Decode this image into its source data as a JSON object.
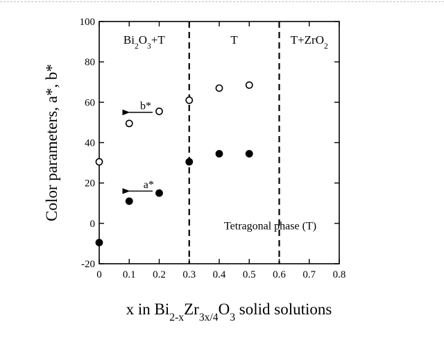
{
  "chart_data": {
    "type": "scatter",
    "xlabel": [
      "x in Bi",
      "2-x",
      "Zr",
      "3x/4",
      "O",
      "3",
      " solid solutions"
    ],
    "ylabel": "Color parameters, a*, b*",
    "xlim": [
      0,
      0.8
    ],
    "ylim": [
      -20,
      100
    ],
    "x_ticks": [
      "0",
      "0.1",
      "0.2",
      "0.3",
      "0.4",
      "0.5",
      "0.6",
      "0.7",
      "0.8"
    ],
    "y_ticks": [
      "-20",
      "0",
      "20",
      "40",
      "60",
      "80",
      "100"
    ],
    "grid": false,
    "series": [
      {
        "name": "b*",
        "marker": "open-circle",
        "points": [
          {
            "x": 0,
            "y": 30.5
          },
          {
            "x": 0.1,
            "y": 49.5
          },
          {
            "x": 0.2,
            "y": 55.5
          },
          {
            "x": 0.3,
            "y": 61
          },
          {
            "x": 0.4,
            "y": 67
          },
          {
            "x": 0.5,
            "y": 68.5
          }
        ]
      },
      {
        "name": "a*",
        "marker": "filled-circle",
        "points": [
          {
            "x": 0,
            "y": -9.5
          },
          {
            "x": 0.1,
            "y": 11
          },
          {
            "x": 0.2,
            "y": 15
          },
          {
            "x": 0.3,
            "y": 30.5
          },
          {
            "x": 0.4,
            "y": 34.5
          },
          {
            "x": 0.5,
            "y": 34.5
          }
        ]
      }
    ],
    "phase_boundaries": [
      0.3,
      0.6
    ],
    "regions": [
      {
        "parts": [
          "Bi",
          "2",
          "O",
          "3",
          "+T"
        ]
      },
      {
        "parts": [
          "T"
        ]
      },
      {
        "parts": [
          "T+ZrO",
          "2"
        ]
      }
    ],
    "annotations": {
      "b_label": "b*",
      "a_label": "a*",
      "phase_note": "Tetragonal phase (T)"
    }
  }
}
